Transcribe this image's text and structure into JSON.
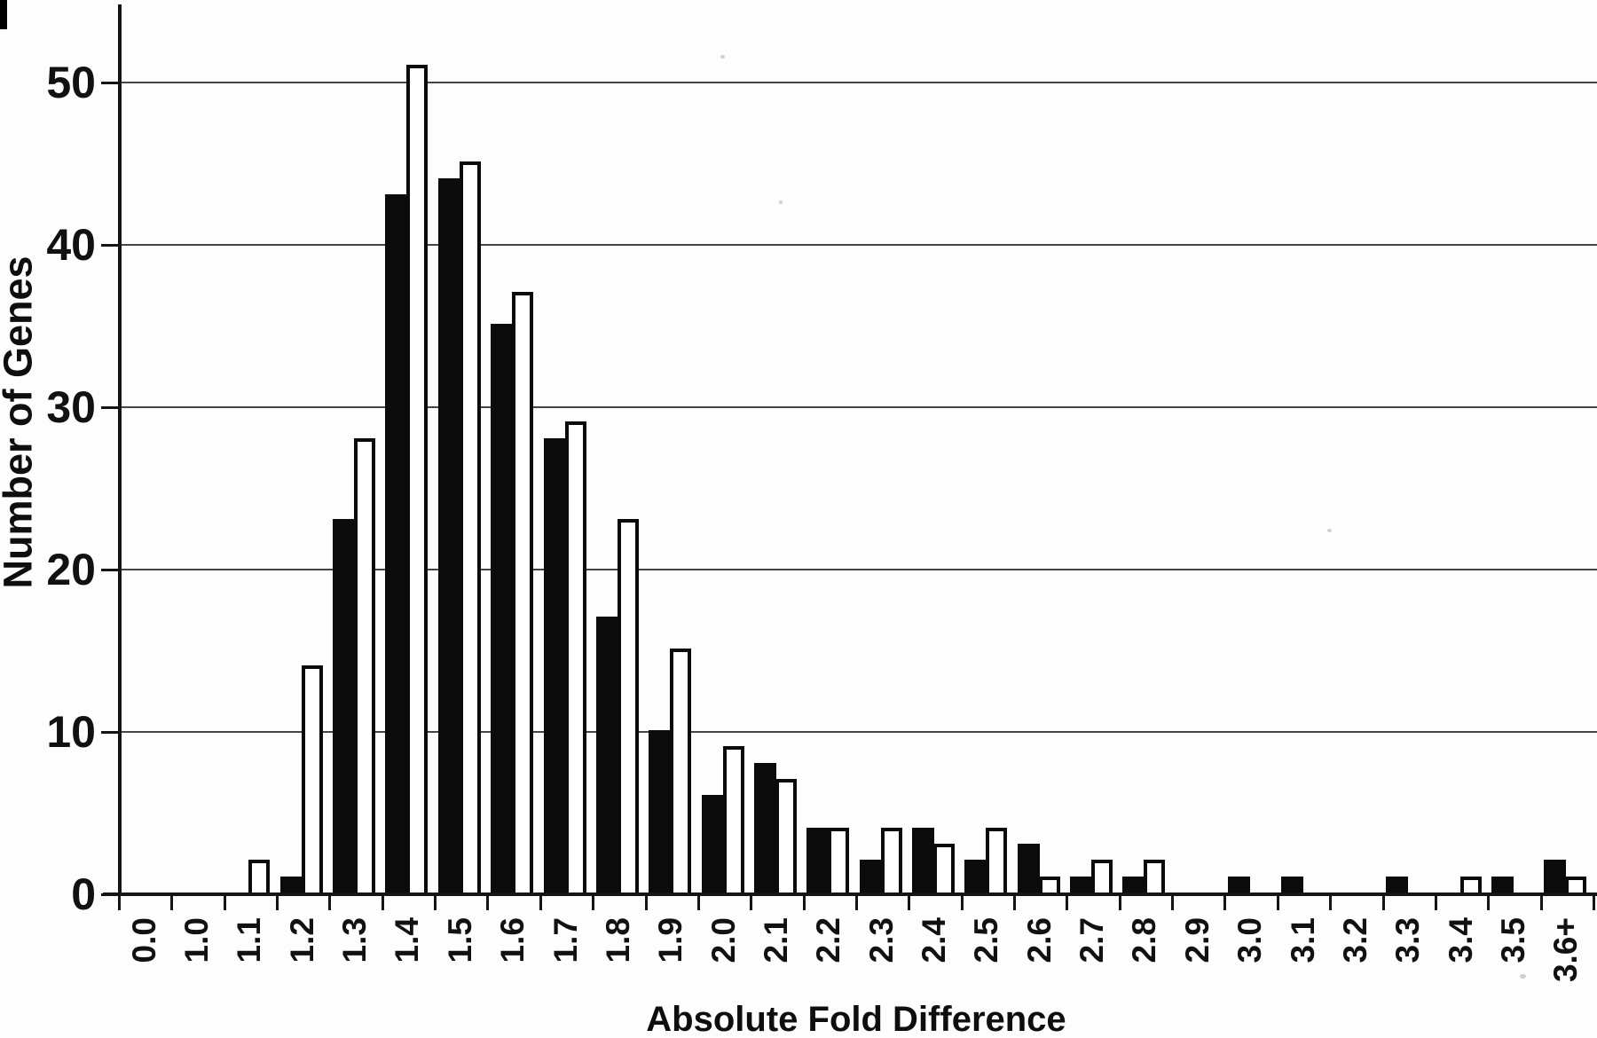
{
  "chart_data": {
    "type": "bar",
    "title": "",
    "xlabel": "Absolute Fold Difference",
    "ylabel": "Number of Genes",
    "categories": [
      "0.0",
      "1.0",
      "1.1",
      "1.2",
      "1.3",
      "1.4",
      "1.5",
      "1.6",
      "1.7",
      "1.8",
      "1.9",
      "2.0",
      "2.1",
      "2.2",
      "2.3",
      "2.4",
      "2.5",
      "2.6",
      "2.7",
      "2.8",
      "2.9",
      "3.0",
      "3.1",
      "3.2",
      "3.3",
      "3.4",
      "3.5",
      "3.6+"
    ],
    "series": [
      {
        "name": "filled-black-bars",
        "color": "#0b0b0b",
        "values": [
          0,
          0,
          0,
          1,
          23,
          43,
          44,
          35,
          28,
          17,
          10,
          6,
          8,
          4,
          2,
          4,
          2,
          3,
          1,
          1,
          0,
          1,
          1,
          0,
          1,
          0,
          1,
          2
        ]
      },
      {
        "name": "open-white-bars",
        "color": "#ffffff",
        "values": [
          0,
          0,
          2,
          14,
          28,
          51,
          45,
          37,
          29,
          23,
          15,
          9,
          7,
          4,
          4,
          3,
          4,
          1,
          2,
          2,
          0,
          0,
          0,
          0,
          0,
          1,
          0,
          1
        ]
      }
    ],
    "y_ticks": [
      0,
      10,
      20,
      30,
      40,
      50
    ],
    "ylim": [
      0,
      55
    ],
    "grid": "horizontal-only",
    "legend": "none"
  },
  "style": {
    "bar_fill_black": "#0b0b0b",
    "bar_fill_white": "#ffffff",
    "bar_border": "#0b0b0b",
    "grid_color": "#454545",
    "axis_color": "#151515",
    "background": "#fdfdfd"
  }
}
